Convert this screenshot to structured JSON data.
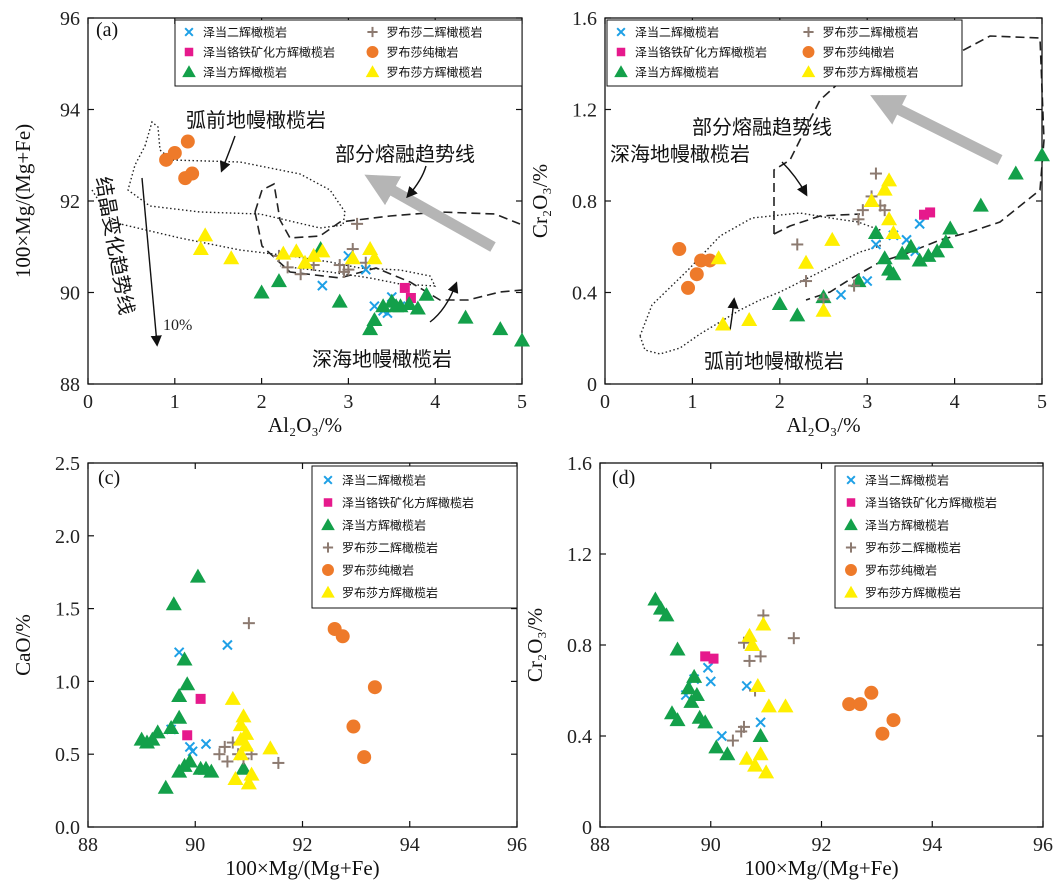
{
  "colors": {
    "zd_harz": "#1ea0e6",
    "zd_chromite_harz": "#e6198c",
    "zd_dunite_green": "#13a04a",
    "lbs_harz": "#8c7a70",
    "lbs_dunite": "#ee7a2a",
    "lbs_harz_yellow": "#ffef00",
    "arrow_gray": "#b5b5b5"
  },
  "legend_entries": [
    "泽当二辉橄榄岩",
    "泽当铬铁矿化方辉橄榄岩",
    "泽当方辉橄榄岩",
    "罗布莎二辉橄榄岩",
    "罗布莎纯橄岩",
    "罗布莎方辉橄榄岩"
  ],
  "chart_data": [
    {
      "type": "scatter",
      "panel": "(a)",
      "xlabel": "Al₂O₃/%",
      "ylabel": "100×Mg/(Mg+Fe)",
      "xlim": [
        0,
        5
      ],
      "ylim": [
        88,
        96
      ],
      "xticks": [
        "0",
        "1",
        "2",
        "3",
        "4",
        "5"
      ],
      "yticks": [
        "88",
        "90",
        "92",
        "94",
        "96"
      ],
      "annotations": [
        "弧前地幔橄榄岩",
        "部分熔融趋势线",
        "结晶变化趋势线",
        "10%",
        "深海地幔橄榄岩"
      ],
      "series": [
        {
          "name": "泽当二辉橄榄岩",
          "marker": "x",
          "points": [
            [
              2.7,
              90.15
            ],
            [
              3.0,
              90.8
            ],
            [
              3.2,
              90.5
            ],
            [
              3.4,
              89.6
            ],
            [
              3.5,
              89.9
            ],
            [
              3.6,
              89.7
            ],
            [
              3.3,
              89.7
            ],
            [
              3.45,
              89.55
            ]
          ]
        },
        {
          "name": "泽当铬铁矿化方辉橄榄岩",
          "marker": "square",
          "points": [
            [
              3.65,
              90.1
            ],
            [
              3.72,
              89.88
            ]
          ]
        },
        {
          "name": "泽当方辉橄榄岩",
          "marker": "triangle",
          "points": [
            [
              2.0,
              90.0
            ],
            [
              2.2,
              90.25
            ],
            [
              2.68,
              90.95
            ],
            [
              2.9,
              89.8
            ],
            [
              3.25,
              89.2
            ],
            [
              3.3,
              89.4
            ],
            [
              3.4,
              89.7
            ],
            [
              3.5,
              89.8
            ],
            [
              3.6,
              89.7
            ],
            [
              3.7,
              89.75
            ],
            [
              3.8,
              89.65
            ],
            [
              3.9,
              89.95
            ],
            [
              4.35,
              89.45
            ],
            [
              4.75,
              89.2
            ],
            [
              5.0,
              88.95
            ],
            [
              3.55,
              89.7
            ]
          ]
        },
        {
          "name": "罗布莎二辉橄榄岩",
          "marker": "plus",
          "points": [
            [
              2.2,
              90.8
            ],
            [
              2.3,
              90.55
            ],
            [
              2.45,
              90.4
            ],
            [
              2.6,
              90.6
            ],
            [
              2.9,
              90.6
            ],
            [
              2.95,
              90.45
            ],
            [
              3.05,
              90.95
            ],
            [
              3.1,
              91.5
            ],
            [
              3.0,
              90.5
            ],
            [
              3.2,
              90.65
            ]
          ]
        },
        {
          "name": "罗布莎纯橄岩",
          "marker": "circle",
          "points": [
            [
              0.9,
              92.9
            ],
            [
              1.0,
              93.05
            ],
            [
              1.15,
              93.3
            ],
            [
              1.12,
              92.5
            ],
            [
              1.2,
              92.6
            ]
          ]
        },
        {
          "name": "罗布莎方辉橄榄岩",
          "marker": "triangle-yellow",
          "points": [
            [
              1.3,
              90.95
            ],
            [
              1.35,
              91.25
            ],
            [
              1.65,
              90.75
            ],
            [
              2.25,
              90.85
            ],
            [
              2.4,
              90.9
            ],
            [
              2.5,
              90.65
            ],
            [
              2.6,
              90.8
            ],
            [
              2.7,
              90.9
            ],
            [
              3.05,
              90.75
            ],
            [
              3.25,
              90.95
            ],
            [
              3.3,
              90.75
            ]
          ]
        }
      ]
    },
    {
      "type": "scatter",
      "panel": "(b)",
      "xlabel": "Al₂O₃/%",
      "ylabel": "Cr₂O₃/%",
      "xlim": [
        0,
        5
      ],
      "ylim": [
        0,
        1.6
      ],
      "xticks": [
        "0",
        "1",
        "2",
        "3",
        "4",
        "5"
      ],
      "yticks": [
        "0",
        "0.4",
        "0.8",
        "1.2",
        "1.6"
      ],
      "annotations": [
        "部分熔融趋势线",
        "深海地幔橄榄岩",
        "弧前地幔橄榄岩"
      ],
      "series": [
        {
          "name": "泽当二辉橄榄岩",
          "marker": "x",
          "points": [
            [
              2.7,
              0.39
            ],
            [
              3.1,
              0.61
            ],
            [
              3.3,
              0.65
            ],
            [
              3.45,
              0.63
            ],
            [
              3.55,
              0.58
            ],
            [
              3.6,
              0.7
            ],
            [
              3.0,
              0.45
            ]
          ]
        },
        {
          "name": "泽当铬铁矿化方辉橄榄岩",
          "marker": "square",
          "points": [
            [
              3.65,
              0.74
            ],
            [
              3.72,
              0.75
            ]
          ]
        },
        {
          "name": "泽当方辉橄榄岩",
          "marker": "triangle",
          "points": [
            [
              2.0,
              0.35
            ],
            [
              2.2,
              0.3
            ],
            [
              2.5,
              0.38
            ],
            [
              2.9,
              0.45
            ],
            [
              3.1,
              0.66
            ],
            [
              3.2,
              0.55
            ],
            [
              3.25,
              0.5
            ],
            [
              3.3,
              0.48
            ],
            [
              3.4,
              0.57
            ],
            [
              3.5,
              0.6
            ],
            [
              3.6,
              0.54
            ],
            [
              3.7,
              0.56
            ],
            [
              3.8,
              0.58
            ],
            [
              3.9,
              0.62
            ],
            [
              3.95,
              0.68
            ],
            [
              4.3,
              0.78
            ],
            [
              4.7,
              0.92
            ],
            [
              5.0,
              1.0
            ]
          ]
        },
        {
          "name": "罗布莎二辉橄榄岩",
          "marker": "plus",
          "points": [
            [
              2.2,
              0.61
            ],
            [
              2.3,
              0.45
            ],
            [
              2.5,
              0.37
            ],
            [
              2.85,
              0.43
            ],
            [
              2.9,
              0.72
            ],
            [
              2.95,
              0.76
            ],
            [
              3.05,
              0.82
            ],
            [
              3.1,
              0.92
            ],
            [
              3.15,
              0.78
            ],
            [
              3.2,
              0.76
            ]
          ]
        },
        {
          "name": "罗布莎纯橄岩",
          "marker": "circle",
          "points": [
            [
              0.85,
              0.59
            ],
            [
              0.95,
              0.42
            ],
            [
              1.05,
              0.48
            ],
            [
              1.1,
              0.54
            ],
            [
              1.2,
              0.54
            ]
          ]
        },
        {
          "name": "罗布莎方辉橄榄岩",
          "marker": "triangle-yellow",
          "points": [
            [
              1.3,
              0.55
            ],
            [
              1.35,
              0.26
            ],
            [
              1.65,
              0.28
            ],
            [
              2.3,
              0.53
            ],
            [
              2.5,
              0.32
            ],
            [
              2.6,
              0.63
            ],
            [
              3.05,
              0.8
            ],
            [
              3.2,
              0.85
            ],
            [
              3.25,
              0.89
            ],
            [
              3.25,
              0.72
            ],
            [
              3.3,
              0.66
            ]
          ]
        }
      ]
    },
    {
      "type": "scatter",
      "panel": "(c)",
      "xlabel": "100×Mg/(Mg+Fe)",
      "ylabel": "CaO/%",
      "xlim": [
        88,
        96
      ],
      "ylim": [
        0,
        2.5
      ],
      "xticks": [
        "88",
        "90",
        "92",
        "94",
        "96"
      ],
      "yticks": [
        "0.0",
        "0.5",
        "1.0",
        "1.5",
        "2.0",
        "2.5"
      ],
      "series": [
        {
          "name": "泽当二辉橄榄岩",
          "marker": "x",
          "points": [
            [
              89.55,
              0.67
            ],
            [
              89.7,
              1.2
            ],
            [
              89.9,
              0.55
            ],
            [
              89.95,
              0.52
            ],
            [
              90.2,
              0.57
            ],
            [
              90.6,
              1.25
            ]
          ]
        },
        {
          "name": "泽当铬铁矿化方辉橄榄岩",
          "marker": "square",
          "points": [
            [
              89.85,
              0.63
            ],
            [
              90.1,
              0.88
            ]
          ]
        },
        {
          "name": "泽当方辉橄榄岩",
          "marker": "triangle",
          "points": [
            [
              89.0,
              0.6
            ],
            [
              89.1,
              0.58
            ],
            [
              89.2,
              0.6
            ],
            [
              89.3,
              0.65
            ],
            [
              89.45,
              0.27
            ],
            [
              89.55,
              0.68
            ],
            [
              89.6,
              1.53
            ],
            [
              89.7,
              0.9
            ],
            [
              89.7,
              0.75
            ],
            [
              89.7,
              0.38
            ],
            [
              89.8,
              1.15
            ],
            [
              89.8,
              0.42
            ],
            [
              89.85,
              0.98
            ],
            [
              89.9,
              0.45
            ],
            [
              90.05,
              1.72
            ],
            [
              90.1,
              0.4
            ],
            [
              90.2,
              0.4
            ],
            [
              90.3,
              0.38
            ],
            [
              90.9,
              0.4
            ]
          ]
        },
        {
          "name": "罗布莎二辉橄榄岩",
          "marker": "plus",
          "points": [
            [
              90.45,
              0.5
            ],
            [
              90.55,
              0.55
            ],
            [
              90.6,
              0.45
            ],
            [
              90.7,
              0.58
            ],
            [
              90.8,
              0.5
            ],
            [
              90.9,
              0.47
            ],
            [
              91.0,
              1.4
            ],
            [
              91.05,
              0.5
            ],
            [
              91.55,
              0.44
            ]
          ]
        },
        {
          "name": "罗布莎纯橄岩",
          "marker": "circle",
          "points": [
            [
              92.6,
              1.36
            ],
            [
              92.75,
              1.31
            ],
            [
              92.95,
              0.69
            ],
            [
              93.15,
              0.48
            ],
            [
              93.35,
              0.96
            ]
          ]
        },
        {
          "name": "罗布莎方辉橄榄岩",
          "marker": "triangle-yellow",
          "points": [
            [
              90.7,
              0.88
            ],
            [
              90.75,
              0.33
            ],
            [
              90.85,
              0.5
            ],
            [
              90.85,
              0.7
            ],
            [
              90.9,
              0.76
            ],
            [
              90.95,
              0.64
            ],
            [
              90.95,
              0.56
            ],
            [
              91.0,
              0.3
            ],
            [
              91.05,
              0.36
            ],
            [
              91.4,
              0.54
            ],
            [
              90.85,
              0.6
            ]
          ]
        }
      ]
    },
    {
      "type": "scatter",
      "panel": "(d)",
      "xlabel": "100×Mg/(Mg+Fe)",
      "ylabel": "Cr₂O₃/%",
      "xlim": [
        88,
        96
      ],
      "ylim": [
        0,
        1.6
      ],
      "xticks": [
        "88",
        "90",
        "92",
        "94",
        "96"
      ],
      "yticks": [
        "0",
        "0.4",
        "0.8",
        "1.2",
        "1.6"
      ],
      "series": [
        {
          "name": "泽当二辉橄榄岩",
          "marker": "x",
          "points": [
            [
              89.55,
              0.58
            ],
            [
              89.7,
              0.65
            ],
            [
              89.95,
              0.7
            ],
            [
              90.0,
              0.64
            ],
            [
              90.2,
              0.4
            ],
            [
              90.65,
              0.62
            ],
            [
              90.9,
              0.46
            ]
          ]
        },
        {
          "name": "泽当铬铁矿化方辉橄榄岩",
          "marker": "square",
          "points": [
            [
              89.9,
              0.75
            ],
            [
              90.05,
              0.74
            ]
          ]
        },
        {
          "name": "泽当方辉橄榄岩",
          "marker": "triangle",
          "points": [
            [
              89.0,
              1.0
            ],
            [
              89.1,
              0.96
            ],
            [
              89.2,
              0.93
            ],
            [
              89.3,
              0.5
            ],
            [
              89.4,
              0.78
            ],
            [
              89.4,
              0.47
            ],
            [
              89.6,
              0.61
            ],
            [
              89.65,
              0.55
            ],
            [
              89.75,
              0.58
            ],
            [
              89.8,
              0.48
            ],
            [
              89.9,
              0.46
            ],
            [
              90.1,
              0.35
            ],
            [
              90.3,
              0.32
            ],
            [
              90.9,
              0.4
            ],
            [
              89.7,
              0.66
            ]
          ]
        },
        {
          "name": "罗布莎二辉橄榄岩",
          "marker": "plus",
          "points": [
            [
              90.4,
              0.38
            ],
            [
              90.55,
              0.42
            ],
            [
              90.6,
              0.44
            ],
            [
              90.6,
              0.81
            ],
            [
              90.7,
              0.73
            ],
            [
              90.8,
              0.6
            ],
            [
              90.9,
              0.75
            ],
            [
              90.95,
              0.93
            ],
            [
              91.5,
              0.83
            ]
          ]
        },
        {
          "name": "罗布莎纯橄岩",
          "marker": "circle",
          "points": [
            [
              92.5,
              0.54
            ],
            [
              92.7,
              0.54
            ],
            [
              92.9,
              0.59
            ],
            [
              93.1,
              0.41
            ],
            [
              93.3,
              0.47
            ]
          ]
        },
        {
          "name": "罗布莎方辉橄榄岩",
          "marker": "triangle-yellow",
          "points": [
            [
              90.65,
              0.3
            ],
            [
              90.7,
              0.84
            ],
            [
              90.75,
              0.8
            ],
            [
              90.8,
              0.27
            ],
            [
              90.85,
              0.62
            ],
            [
              90.9,
              0.32
            ],
            [
              90.95,
              0.89
            ],
            [
              91.0,
              0.24
            ],
            [
              91.05,
              0.53
            ],
            [
              91.35,
              0.53
            ]
          ]
        }
      ]
    }
  ]
}
